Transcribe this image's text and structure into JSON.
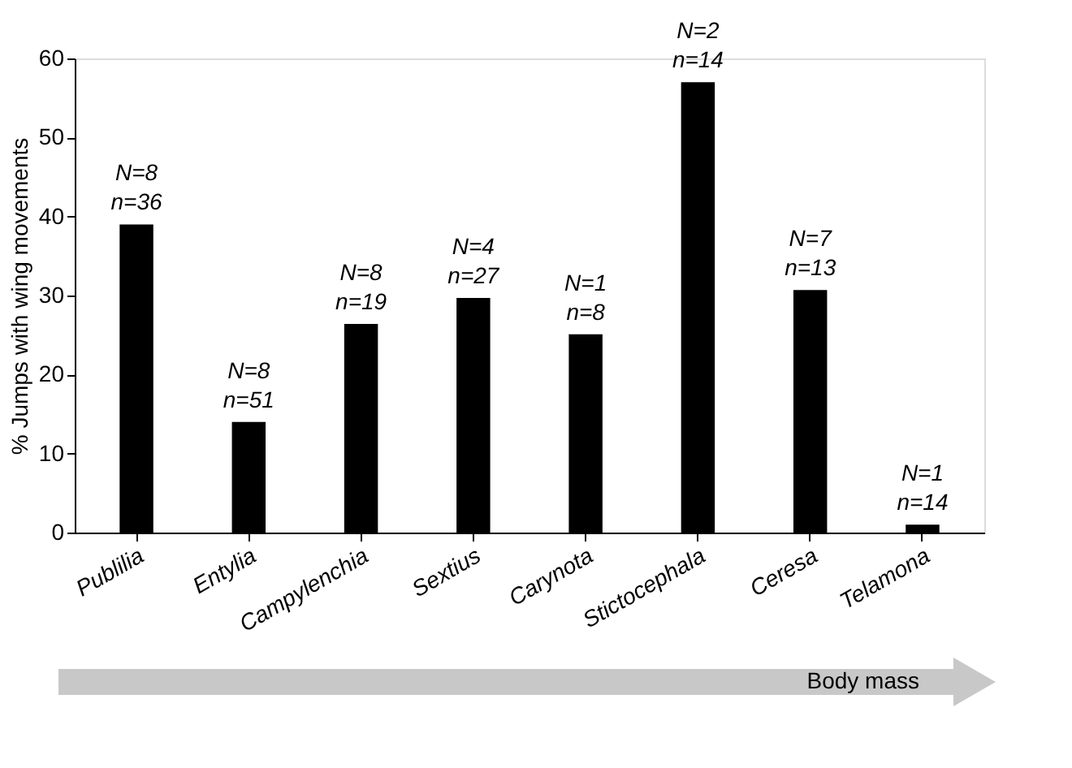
{
  "chart_data": {
    "type": "bar",
    "ylabel": "% Jumps with wing movements",
    "categories": [
      "Publilia",
      "Entylia",
      "Campylenchia",
      "Sextius",
      "Carynota",
      "Stictocephala",
      "Ceresa",
      "Telamona"
    ],
    "values": [
      39,
      14,
      26.4,
      29.7,
      25.1,
      57,
      30.7,
      1
    ],
    "color": "#000000",
    "ylim": [
      0,
      60
    ],
    "yticks": [
      0,
      10,
      20,
      30,
      40,
      50,
      60
    ],
    "grid": false,
    "annotations": [
      {
        "text": "N=8\nn=36",
        "x": "Publilia",
        "y": 39
      },
      {
        "text": "N=8\nn=51",
        "x": "Entylia",
        "y": 14
      },
      {
        "text": "N=8\nn=19",
        "x": "Campylenchia",
        "y": 26.4
      },
      {
        "text": "N=4\nn=27",
        "x": "Sextius",
        "y": 29.7
      },
      {
        "text": "N=1\nn=8",
        "x": "Carynota",
        "y": 25.1
      },
      {
        "text": "N=2\nn=14",
        "x": "Stictocephala",
        "y": 57
      },
      {
        "text": "N=7\nn=13",
        "x": "Ceresa",
        "y": 30.7
      },
      {
        "text": "N=1\nn=14",
        "x": "Telamona",
        "y": 1
      },
      "Body mass"
    ]
  }
}
